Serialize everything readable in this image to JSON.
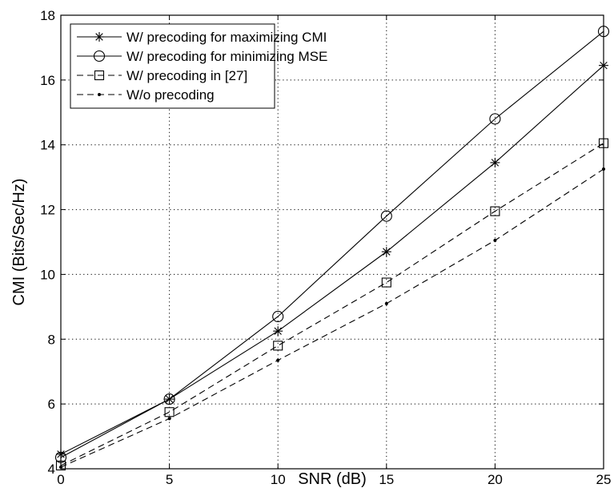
{
  "chart_data": {
    "type": "line",
    "title": "",
    "xlabel": "SNR (dB)",
    "ylabel": "CMI (Bits/Sec/Hz)",
    "xlim": [
      0,
      25
    ],
    "ylim": [
      4,
      18
    ],
    "xticks": [
      0,
      5,
      10,
      15,
      20,
      25
    ],
    "yticks": [
      4,
      6,
      8,
      10,
      12,
      14,
      16,
      18
    ],
    "grid": true,
    "legend_position": "top-left",
    "x": [
      0,
      5,
      10,
      15,
      20,
      25
    ],
    "series": [
      {
        "name": "W/ precoding for maximizing CMI",
        "values": [
          4.45,
          6.15,
          8.25,
          10.7,
          13.45,
          16.45
        ],
        "marker": "asterisk",
        "line": "solid"
      },
      {
        "name": "W/ precoding for minimizing MSE",
        "values": [
          4.35,
          6.15,
          8.7,
          11.8,
          14.8,
          17.5
        ],
        "marker": "circle",
        "line": "solid"
      },
      {
        "name": "W/ precoding in [27]",
        "values": [
          4.1,
          5.75,
          7.8,
          9.75,
          11.95,
          14.05
        ],
        "marker": "square",
        "line": "dashed"
      },
      {
        "name": "W/o precoding",
        "values": [
          4.05,
          5.55,
          7.35,
          9.1,
          11.05,
          13.25
        ],
        "marker": "dot",
        "line": "dashed"
      }
    ]
  }
}
